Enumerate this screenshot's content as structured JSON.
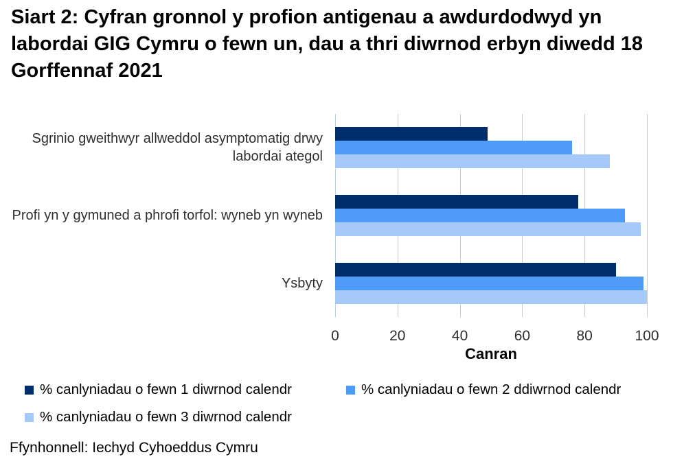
{
  "title": "Siart 2: Cyfran gronnol y profion antigenau a awdurdodwyd yn labordai GIG Cymru o fewn un, dau a thri diwrnod erbyn diwedd 18 Gorffennaf 2021",
  "source": "Ffynhonnell: Iechyd Cyhoeddus Cymru",
  "chart_data": {
    "type": "bar",
    "orientation": "horizontal",
    "title": "Siart 2: Cyfran gronnol y profion antigenau a awdurdodwyd yn labordai GIG Cymru o fewn un, dau a thri diwrnod erbyn diwedd 18 Gorffennaf 2021",
    "categories": [
      "Sgrinio gweithwyr allweddol asymptomatig drwy labordai ategol",
      "Profi yn y gymuned a phrofi torfol: wyneb yn wyneb",
      "Ysbyty"
    ],
    "series": [
      {
        "name": "% canlyniadau o fewn 1 diwrnod calendr",
        "color": "#002d6b",
        "values": [
          49,
          78,
          90
        ]
      },
      {
        "name": "% canlyniadau o fewn 2 ddiwrnod calendr",
        "color": "#4f9bf8",
        "values": [
          76,
          93,
          99
        ]
      },
      {
        "name": "% canlyniadau o fewn 3 diwrnod calendr",
        "color": "#a6c9f9",
        "values": [
          88,
          98,
          100
        ]
      }
    ],
    "xlabel": "Canran",
    "xticks": [
      0,
      20,
      40,
      60,
      80,
      100
    ],
    "xlim": [
      0,
      100
    ],
    "grid": "vertical",
    "gridline_color": "#c9c9c9",
    "axis_line_color": "#b7cde9",
    "legend_position": "bottom"
  }
}
